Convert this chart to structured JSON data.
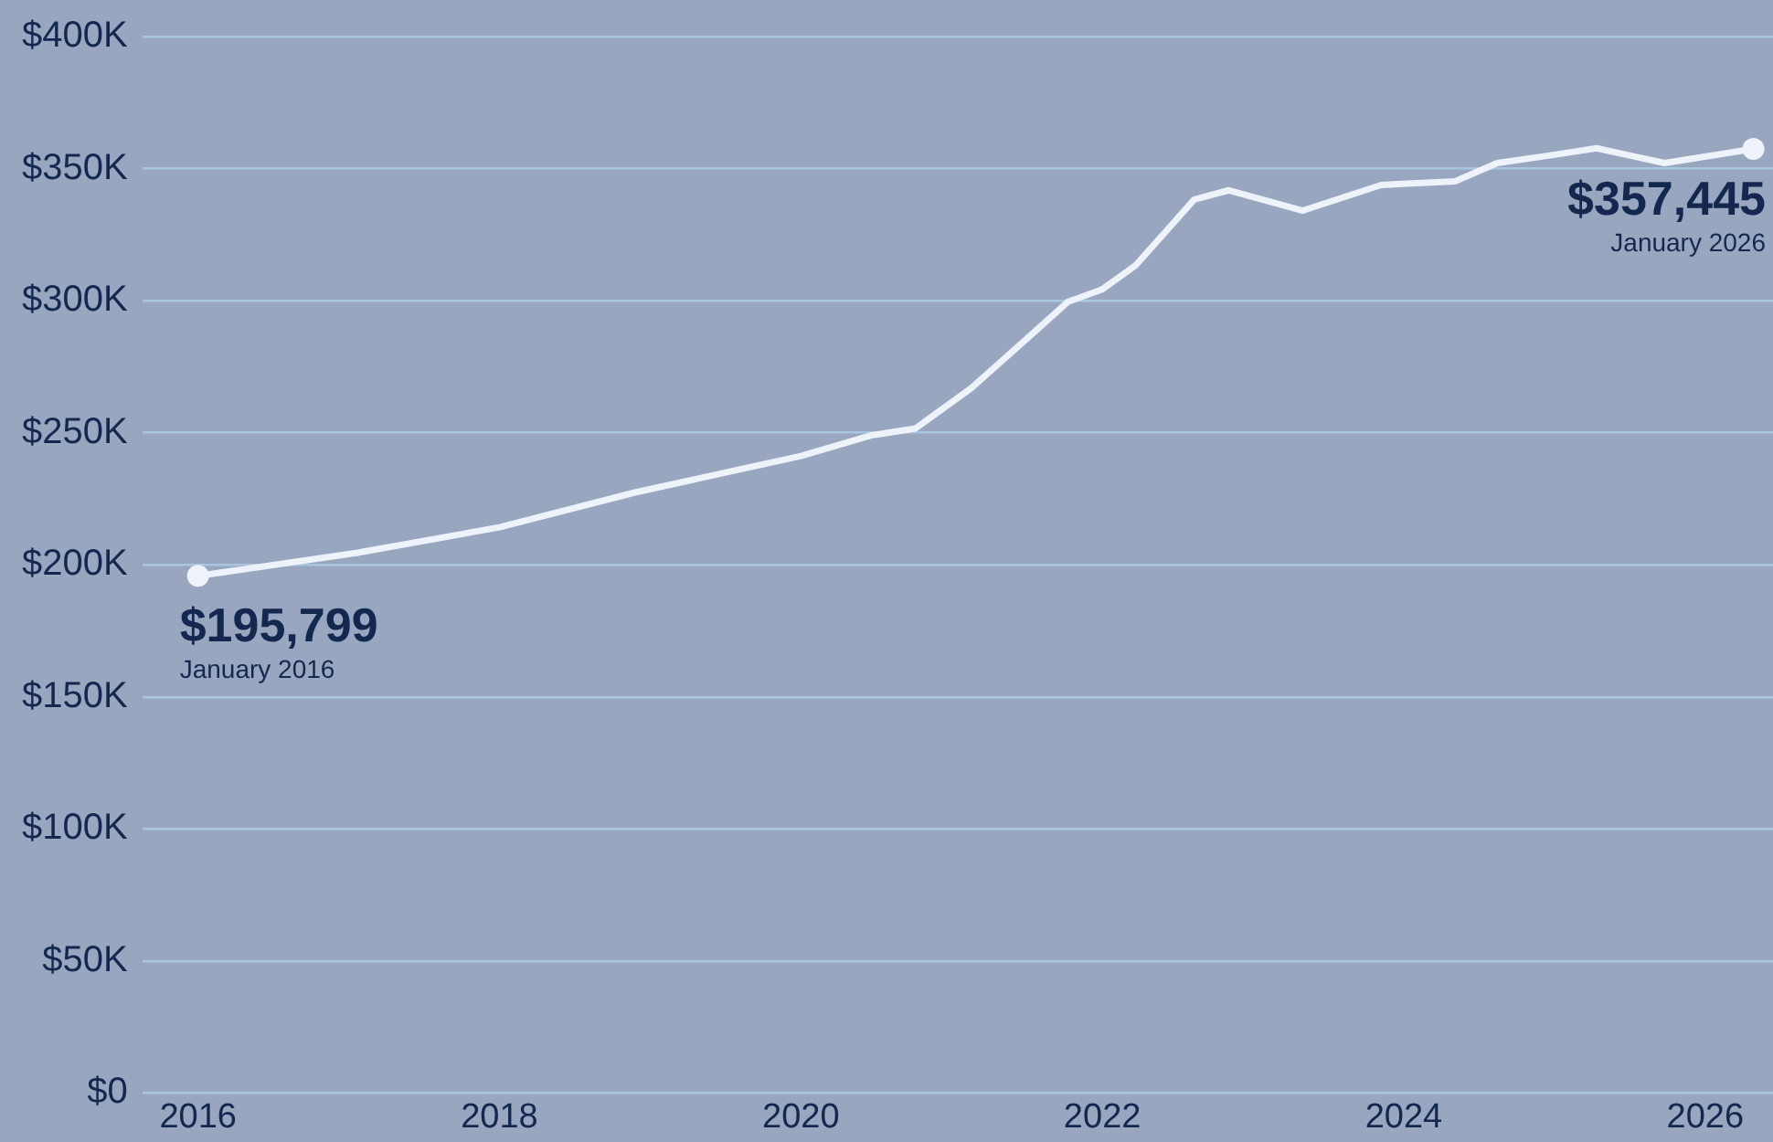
{
  "chart_data": {
    "type": "line",
    "x": [
      2016.0,
      2017.05,
      2018.0,
      2018.9,
      2020.0,
      2020.46,
      2020.76,
      2021.13,
      2021.5,
      2021.77,
      2022.0,
      2022.22,
      2022.61,
      2022.84,
      2023.33,
      2023.85,
      2024.34,
      2024.62,
      2024.96,
      2025.28,
      2025.73,
      2026.32
    ],
    "series": [
      {
        "color": "#eef3fb",
        "values": [
          195799,
          204500,
          214200,
          227400,
          241200,
          248900,
          251600,
          266900,
          285600,
          299500,
          304300,
          313300,
          338300,
          341800,
          334100,
          343800,
          345200,
          352100,
          354900,
          357700,
          352100,
          357445
        ]
      }
    ],
    "xlim": [
      2015.63,
      2026.45
    ],
    "xticks": [
      2016,
      2018,
      2020,
      2022,
      2024,
      2026
    ],
    "ylim": [
      0,
      400000
    ],
    "yticks": [
      {
        "value": 0,
        "label": "$0"
      },
      {
        "value": 50000,
        "label": "$50K"
      },
      {
        "value": 100000,
        "label": "$100K"
      },
      {
        "value": 150000,
        "label": "$150K"
      },
      {
        "value": 200000,
        "label": "$200K"
      },
      {
        "value": 250000,
        "label": "$250K"
      },
      {
        "value": 300000,
        "label": "$300K"
      },
      {
        "value": 350000,
        "label": "$350K"
      },
      {
        "value": 400000,
        "label": "$400K"
      }
    ],
    "grid": "y",
    "legend": false,
    "marker": "none",
    "line_style": "solid",
    "annotations": [
      {
        "text": "$195,799",
        "x": 2016.0,
        "y": 195799
      },
      "January 2016",
      {
        "text": "$357,445",
        "x": 2026.32,
        "y": 357445
      },
      "January 2026"
    ]
  }
}
